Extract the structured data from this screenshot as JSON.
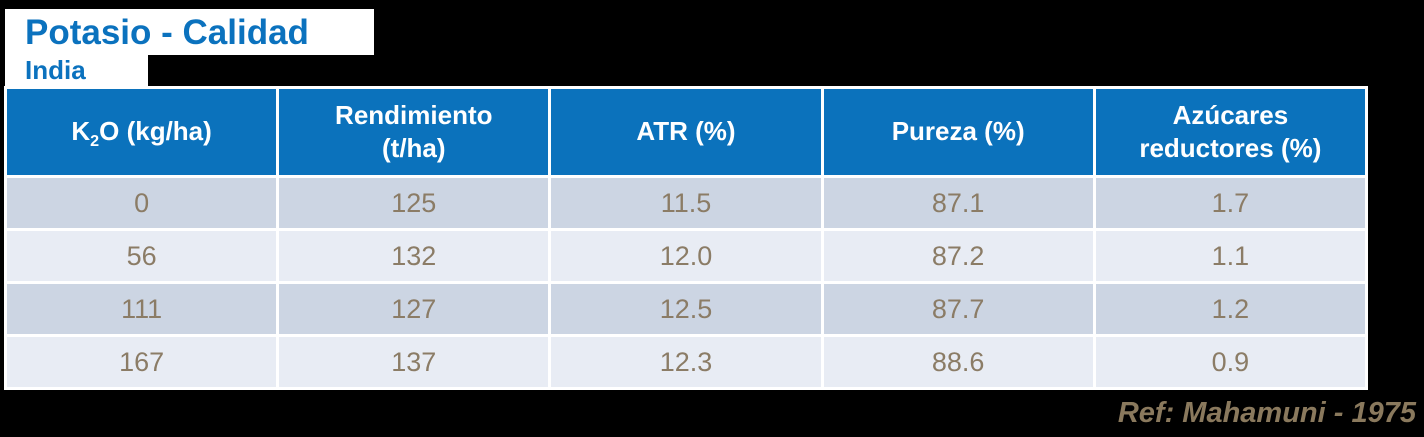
{
  "page": {
    "title": "Potasio - Calidad",
    "subtitle": "India",
    "reference": "Ref: Mahamuni - 1975"
  },
  "colors": {
    "canvas_background": "#000000",
    "title_text": "#0b72be",
    "title_highlight": "#ffffff",
    "header_background": "#0b72bc",
    "header_text": "#ffffff",
    "row_odd_background": "#ccd5e3",
    "row_even_background": "#e8ecf4",
    "cell_text": "#8b7c66",
    "reference_text": "#8a795d"
  },
  "table": {
    "columns": [
      {
        "k": "K",
        "sub": "2",
        "rest": "O (kg/ha)"
      },
      {
        "line1": "Rendimiento",
        "line2": "(t/ha)"
      },
      {
        "line1": "ATR (%)"
      },
      {
        "line1": "Pureza (%)"
      },
      {
        "line1": "Azúcares",
        "line2": "reductores (%)"
      }
    ],
    "rows": [
      [
        "0",
        "125",
        "11.5",
        "87.1",
        "1.7"
      ],
      [
        "56",
        "132",
        "12.0",
        "87.2",
        "1.1"
      ],
      [
        "111",
        "127",
        "12.5",
        "87.7",
        "1.2"
      ],
      [
        "167",
        "137",
        "12.3",
        "88.6",
        "0.9"
      ]
    ]
  }
}
